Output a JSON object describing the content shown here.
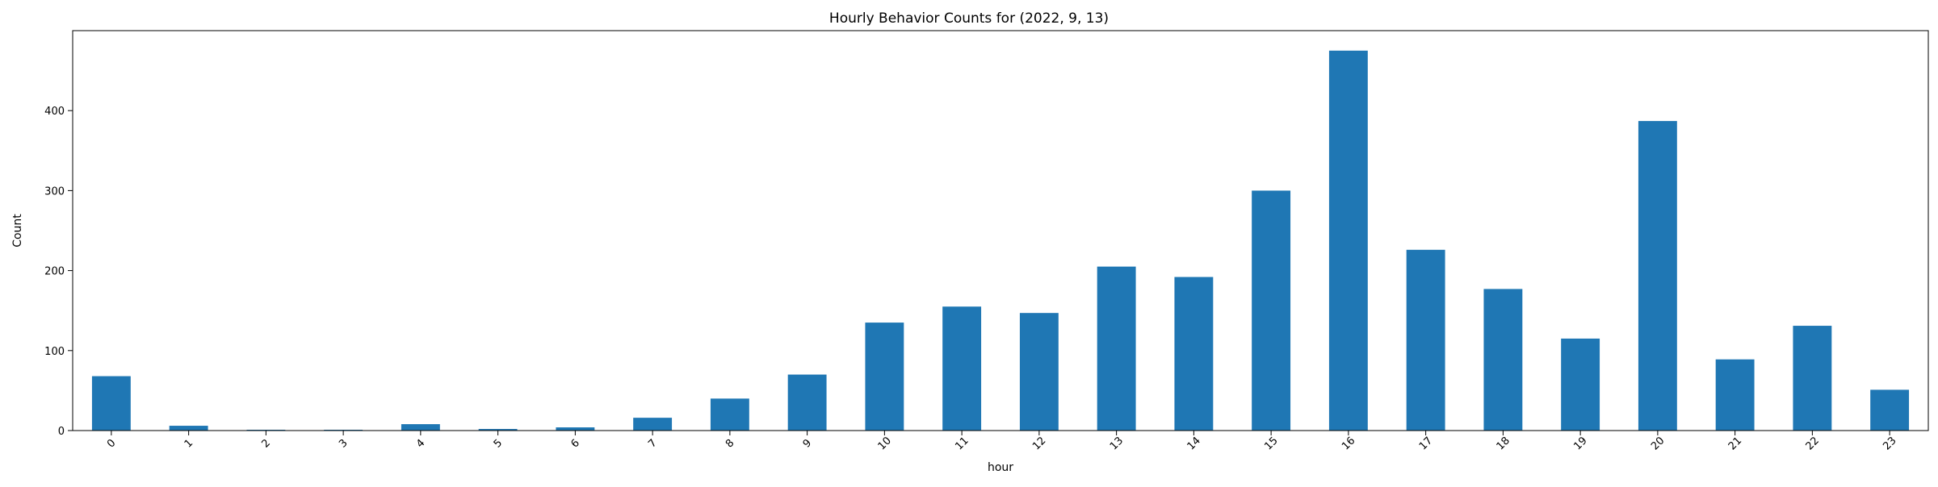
{
  "chart_data": {
    "type": "bar",
    "title": "Hourly Behavior Counts for (2022, 9, 13)",
    "xlabel": "hour",
    "ylabel": "Count",
    "categories": [
      "0",
      "1",
      "2",
      "3",
      "4",
      "5",
      "6",
      "7",
      "8",
      "9",
      "10",
      "11",
      "12",
      "13",
      "14",
      "15",
      "16",
      "17",
      "18",
      "19",
      "20",
      "21",
      "22",
      "23"
    ],
    "values": [
      68,
      6,
      1,
      1,
      8,
      2,
      4,
      16,
      40,
      70,
      135,
      155,
      147,
      205,
      192,
      300,
      475,
      226,
      177,
      115,
      387,
      89,
      131,
      51
    ],
    "ylim": [
      0,
      500
    ],
    "yticks": [
      0,
      100,
      200,
      300,
      400
    ],
    "bar_color": "#1f77b4",
    "grid": false,
    "xtick_rotation": -45
  }
}
